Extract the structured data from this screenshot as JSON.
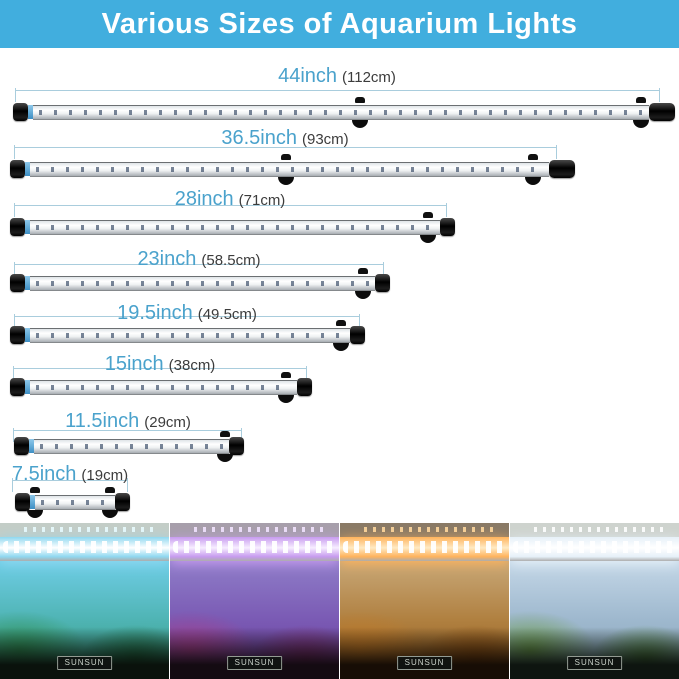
{
  "header": {
    "title": "Various Sizes of Aquarium Lights"
  },
  "colors": {
    "header_bg": "#41aede",
    "header_text": "#ffffff",
    "size_label": "#4aa2cc",
    "cm_label": "#3c3c3c",
    "dim_line": "#a9cddd"
  },
  "sizes": [
    {
      "inch": "44inch",
      "cm": "(112cm)"
    },
    {
      "inch": "36.5inch",
      "cm": "(93cm)"
    },
    {
      "inch": "28inch",
      "cm": "(71cm)"
    },
    {
      "inch": "23inch",
      "cm": "(58.5cm)"
    },
    {
      "inch": "19.5inch",
      "cm": "(49.5cm)"
    },
    {
      "inch": "15inch",
      "cm": "(38cm)"
    },
    {
      "inch": "11.5inch",
      "cm": "(29cm)"
    },
    {
      "inch": "7.5inch",
      "cm": "(19cm)"
    }
  ],
  "photos": [
    {
      "brand": "SUNSUN",
      "light": "blue",
      "colors": {
        "room": "#c3cdc7",
        "dots": "#eafcff",
        "glow": "#8fd8f0",
        "core": "#ffffff",
        "water_top": "#6fcde6",
        "water_mid": "#4fb4b4",
        "water_low": "#35997a",
        "plant": "#2f9055",
        "plant2": "#1d6b40",
        "mound": "#0a120c"
      }
    },
    {
      "brand": "SUNSUN",
      "light": "purple",
      "colors": {
        "room": "#a79fab",
        "dots": "#f3e6ff",
        "glow": "#c79bef",
        "core": "#f7eeff",
        "water_top": "#8f7dc8",
        "water_mid": "#7a5ab4",
        "water_low": "#6b3d9c",
        "plant": "#a63f8c",
        "plant2": "#7a2a66",
        "mound": "#140b12"
      }
    },
    {
      "brand": "SUNSUN",
      "light": "orange",
      "colors": {
        "room": "#8a7a66",
        "dots": "#ffd9a0",
        "glow": "#ffb35c",
        "core": "#ffeac4",
        "water_top": "#c8a878",
        "water_mid": "#b08040",
        "water_low": "#8e5c1e",
        "plant": "#c07a28",
        "plant2": "#894e12",
        "mound": "#170d05"
      }
    },
    {
      "brand": "SUNSUN",
      "light": "white",
      "colors": {
        "room": "#ced3ce",
        "dots": "#ffffff",
        "glow": "#e6f0f8",
        "core": "#ffffff",
        "water_top": "#c4d7e7",
        "water_mid": "#9eb8ce",
        "water_low": "#89a7b7",
        "plant": "#6b9a47",
        "plant2": "#497a2f",
        "mound": "#0e1510"
      }
    }
  ]
}
